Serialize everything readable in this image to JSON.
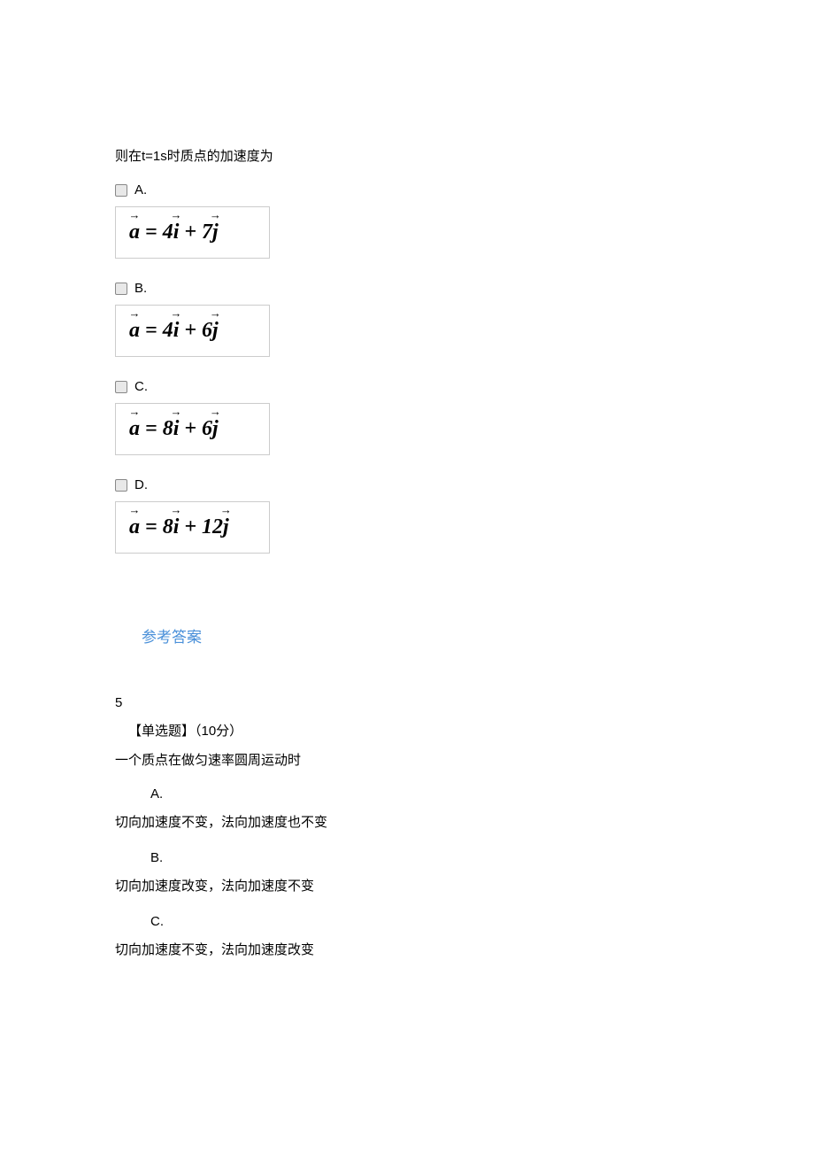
{
  "q4": {
    "intro": "则在t=1s时质点的加速度为",
    "options": [
      {
        "label": "A.",
        "coef_i": "4",
        "coef_j": "7"
      },
      {
        "label": "B.",
        "coef_i": "4",
        "coef_j": "6"
      },
      {
        "label": "C.",
        "coef_i": "8",
        "coef_j": "6"
      },
      {
        "label": "D.",
        "coef_i": "8",
        "coef_j": "12"
      }
    ]
  },
  "answer_link": "参考答案",
  "q5": {
    "number": "5",
    "type_label": "【单选题】（10分）",
    "stem": "一个质点在做匀速率圆周运动时",
    "options": [
      {
        "label": "A.",
        "text": "切向加速度不变，法向加速度也不变"
      },
      {
        "label": "B.",
        "text": "切向加速度改变，法向加速度不变"
      },
      {
        "label": "C.",
        "text": "切向加速度不变，法向加速度改变"
      }
    ]
  },
  "colors": {
    "link": "#4a90d9",
    "border": "#cccccc",
    "text": "#000000",
    "bg": "#ffffff"
  }
}
